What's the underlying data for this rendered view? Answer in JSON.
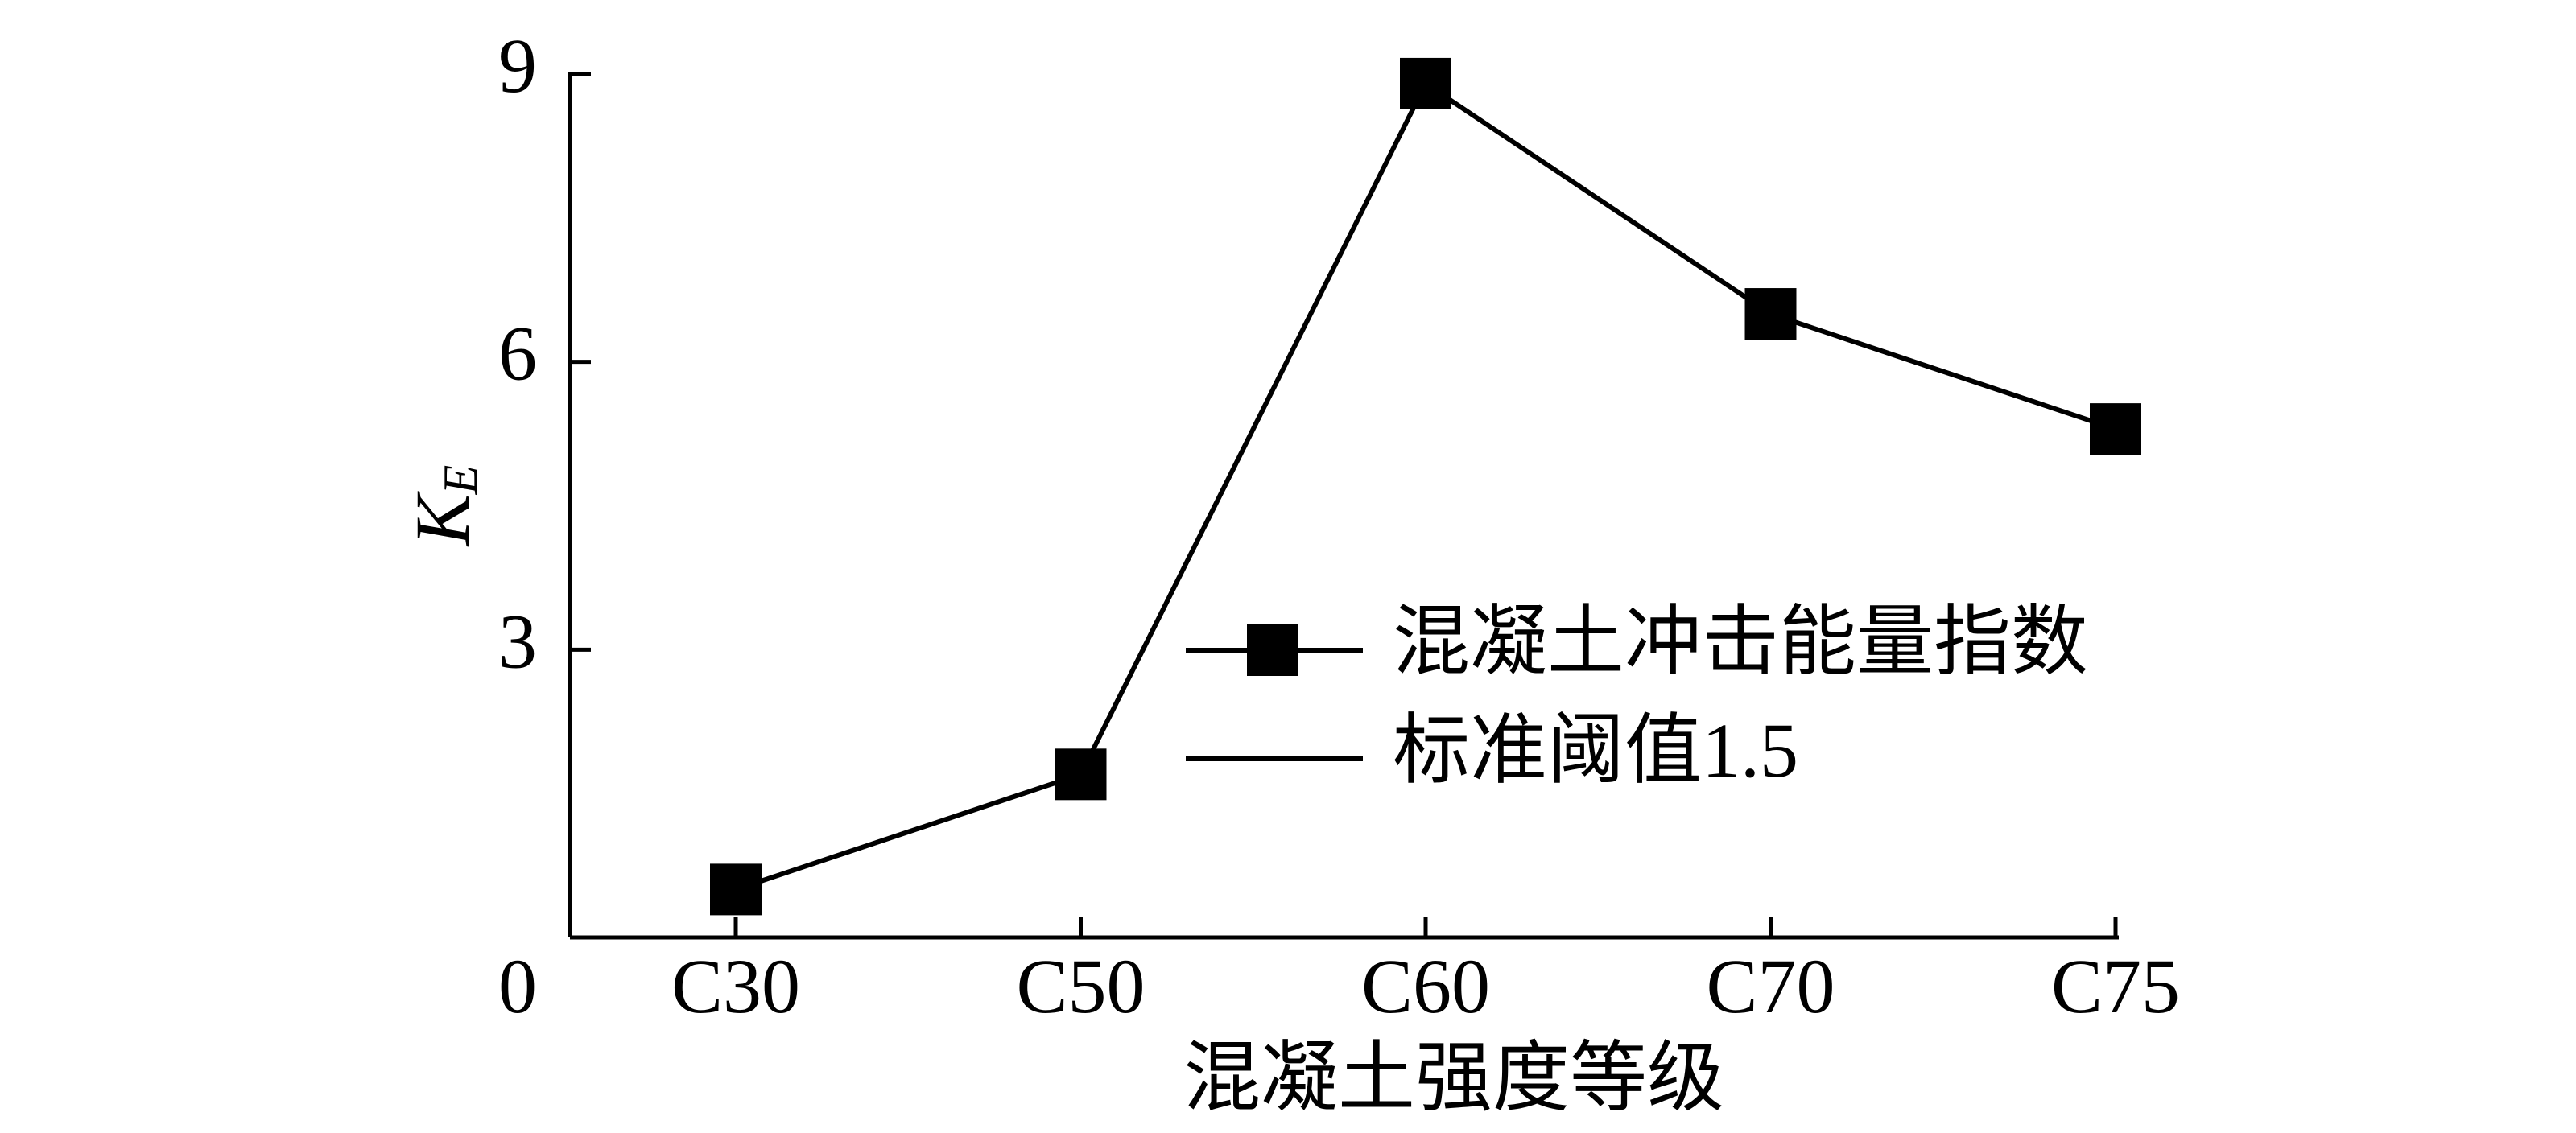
{
  "chart_data": {
    "type": "line",
    "ylabel": {
      "main": "K",
      "sub": "E"
    },
    "xlabel": "混凝土强度等级",
    "categories": [
      "C30",
      "C50",
      "C60",
      "C70",
      "C75"
    ],
    "series": [
      {
        "name": "混凝土冲击能量指数",
        "color": "#000000",
        "marker": "square",
        "values": [
          0.5,
          1.7,
          8.9,
          6.5,
          5.3
        ]
      },
      {
        "name": "标准阈值1.5",
        "color": "#000000"
      }
    ],
    "ylim": [
      0,
      9
    ],
    "yticks": [
      0,
      3,
      6,
      9
    ],
    "grid": false,
    "legend": "right"
  }
}
